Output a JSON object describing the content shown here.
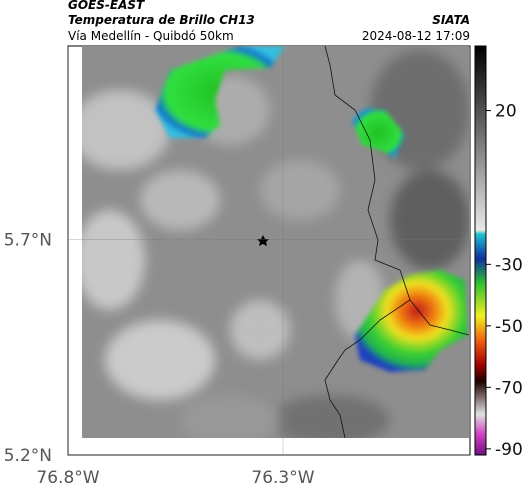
{
  "header": {
    "satellite": "GOES-EAST",
    "product": "Temperatura de Brillo CH13",
    "source": "SIATA",
    "route": "Vía Medellín - Quibdó 50km",
    "datetime": "2024-08-12 17:09"
  },
  "map": {
    "xlim": [
      -76.8,
      -75.865
    ],
    "ylim": [
      5.2,
      6.15
    ],
    "xticks": [
      {
        "value": -76.8,
        "label": "76.8°W"
      },
      {
        "value": -76.3,
        "label": "76.3°W"
      }
    ],
    "yticks": [
      {
        "value": 5.2,
        "label": "5.2°N"
      },
      {
        "value": 5.7,
        "label": "5.7°N"
      }
    ],
    "grid": true
  },
  "colorbar": {
    "lim": [
      -92,
      41
    ],
    "ticks": [
      20,
      -30,
      -50,
      -70,
      -90
    ]
  }
}
